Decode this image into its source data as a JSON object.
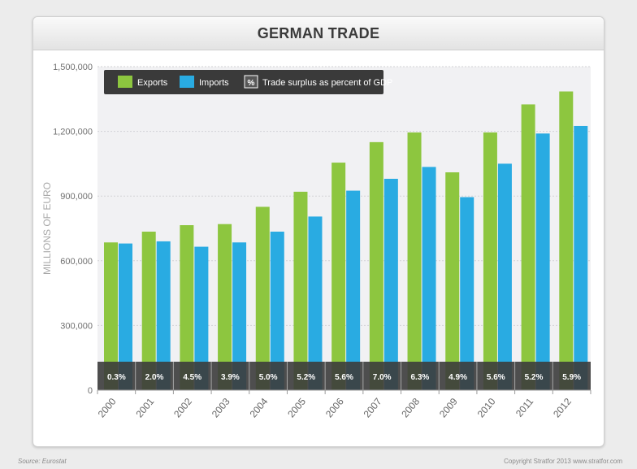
{
  "page": {
    "source": "Source: Eurostat",
    "copyright": "Copyright Stratfor 2013    www.stratfor.com"
  },
  "colors": {
    "exports": "#8dc63f",
    "imports": "#29abe2",
    "surplus_band": "#3c3c3c",
    "legend_bg": "#3a3a3a",
    "plot_bg": "#f1f1f3"
  },
  "legend": {
    "exports_label": "Exports",
    "imports_label": "Imports",
    "surplus_icon": "%",
    "surplus_label": "Trade surplus as percent of GDP",
    "placement": "top-left"
  },
  "chart_data": {
    "type": "bar",
    "title": "GERMAN TRADE",
    "ylabel": "MILLIONS OF EURO",
    "xlabel": "",
    "ylim": [
      0,
      1500000
    ],
    "yticks": [
      0,
      300000,
      600000,
      900000,
      1200000,
      1500000
    ],
    "ytick_labels": [
      "0",
      "300,000",
      "600,000",
      "900,000",
      "1,200,000",
      "1,500,000"
    ],
    "grid": true,
    "categories": [
      "2000",
      "2001",
      "2002",
      "2003",
      "2004",
      "2005",
      "2006",
      "2007",
      "2008",
      "2009",
      "2010",
      "2011",
      "2012"
    ],
    "series": [
      {
        "name": "Exports",
        "values": [
          685000,
          735000,
          765000,
          770000,
          850000,
          920000,
          1055000,
          1150000,
          1195000,
          1010000,
          1195000,
          1325000,
          1385000
        ]
      },
      {
        "name": "Imports",
        "values": [
          680000,
          690000,
          665000,
          685000,
          735000,
          805000,
          925000,
          980000,
          1035000,
          895000,
          1050000,
          1190000,
          1225000
        ]
      }
    ],
    "surplus_pct": [
      "0.3%",
      "2.0%",
      "4.5%",
      "3.9%",
      "5.0%",
      "5.2%",
      "5.6%",
      "7.0%",
      "6.3%",
      "4.9%",
      "5.6%",
      "5.2%",
      "5.9%"
    ]
  }
}
